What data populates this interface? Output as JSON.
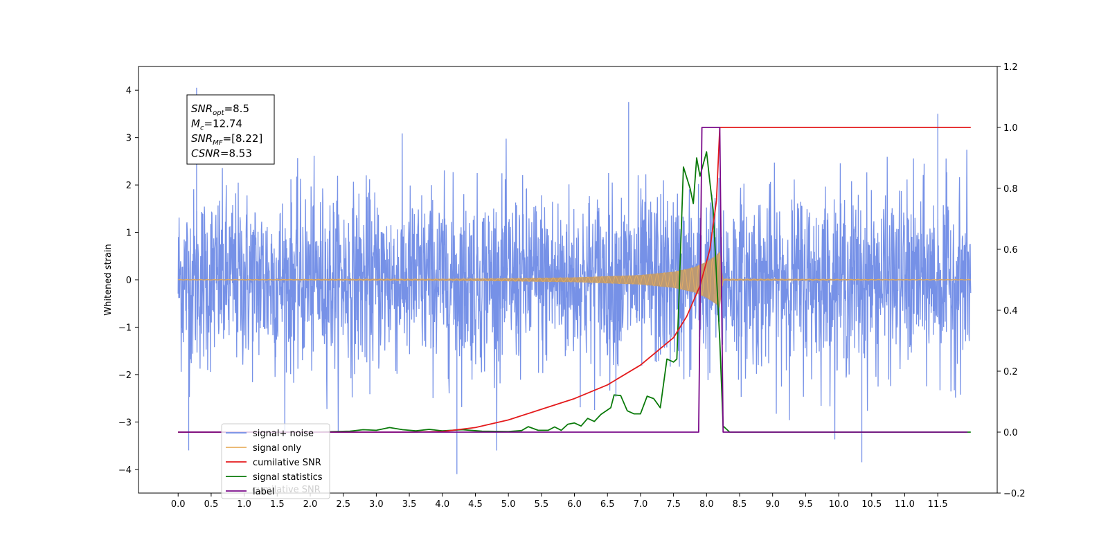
{
  "chart_data": {
    "type": "line",
    "title": "",
    "xlabel": "",
    "ylabel": "Whitened strain",
    "xlim": [
      -0.6,
      12.4
    ],
    "ylim": [
      -4.5,
      4.5
    ],
    "y2lim": [
      -0.2,
      1.2
    ],
    "xticks": [
      0.0,
      0.5,
      1.0,
      1.5,
      2.0,
      2.5,
      3.0,
      3.5,
      4.0,
      4.5,
      5.0,
      5.5,
      6.0,
      6.5,
      7.0,
      7.5,
      8.0,
      8.5,
      9.0,
      9.5,
      10.0,
      10.5,
      11.0,
      11.5
    ],
    "xtick_labels": [
      "0.0",
      "0.5",
      "1.0",
      "1.5",
      "2.0",
      "2.5",
      "3.0",
      "3.5",
      "4.0",
      "4.5",
      "5.0",
      "5.5",
      "6.0",
      "6.5",
      "7.0",
      "7.5",
      "8.0",
      "8.5",
      "9.0",
      "9.5",
      "10.0",
      "10.5",
      "11.0",
      "11.5"
    ],
    "yticks": [
      -4,
      -3,
      -2,
      -1,
      0,
      1,
      2,
      3,
      4
    ],
    "ytick_labels": [
      "−4",
      "−3",
      "−2",
      "−1",
      "0",
      "1",
      "2",
      "3",
      "4"
    ],
    "y2ticks": [
      -0.2,
      0.0,
      0.2,
      0.4,
      0.6,
      0.8,
      1.0,
      1.2
    ],
    "y2tick_labels": [
      "−0.2",
      "0.0",
      "0.2",
      "0.4",
      "0.6",
      "0.8",
      "1.0",
      "1.2"
    ],
    "grid": false,
    "legend_position": "lower-left",
    "annotation": [
      {
        "sym": "SNR",
        "sub": "opt",
        "rest": "=8.5"
      },
      {
        "sym": "M",
        "sub": "c",
        "rest": "=12.74"
      },
      {
        "sym": "SNR",
        "sub": "MF",
        "rest": "=[8.22]"
      },
      {
        "sym": "CSNR",
        "sub": "",
        "rest": "=8.53"
      }
    ],
    "series": [
      {
        "name": "signal+ noise",
        "axis": "left",
        "color": "#6f8be6",
        "x_range": [
          0.0,
          12.0
        ],
        "typical_amplitude": [
          -1.6,
          1.7
        ],
        "extreme_points": [
          [
            0.28,
            4.05
          ],
          [
            0.16,
            -3.6
          ],
          [
            4.22,
            -4.1
          ],
          [
            10.35,
            -3.85
          ],
          [
            6.82,
            3.75
          ],
          [
            11.5,
            3.5
          ]
        ]
      },
      {
        "name": "signal only",
        "axis": "left",
        "color": "#e8b063",
        "envelope": [
          [
            0.0,
            0.01
          ],
          [
            4.0,
            0.02
          ],
          [
            5.0,
            0.03
          ],
          [
            6.0,
            0.05
          ],
          [
            7.0,
            0.1
          ],
          [
            7.5,
            0.17
          ],
          [
            7.8,
            0.26
          ],
          [
            8.0,
            0.38
          ],
          [
            8.15,
            0.52
          ],
          [
            8.2,
            0.6
          ],
          [
            8.25,
            0.02
          ],
          [
            12.0,
            0.01
          ]
        ]
      },
      {
        "name": "cumilative SNR",
        "axis": "right",
        "color": "#e41a1c",
        "points": [
          [
            0.0,
            0.0
          ],
          [
            3.5,
            0.0
          ],
          [
            4.0,
            0.002
          ],
          [
            4.5,
            0.015
          ],
          [
            5.0,
            0.04
          ],
          [
            5.5,
            0.075
          ],
          [
            6.0,
            0.11
          ],
          [
            6.5,
            0.155
          ],
          [
            7.0,
            0.22
          ],
          [
            7.5,
            0.31
          ],
          [
            7.7,
            0.38
          ],
          [
            7.9,
            0.48
          ],
          [
            8.05,
            0.6
          ],
          [
            8.15,
            0.76
          ],
          [
            8.2,
            1.0
          ],
          [
            12.0,
            1.0
          ]
        ]
      },
      {
        "name": "signal statistics",
        "axis": "right",
        "color": "#0a7a0a",
        "points": [
          [
            0.0,
            0.0
          ],
          [
            2.0,
            0.0
          ],
          [
            2.6,
            0.003
          ],
          [
            2.8,
            0.008
          ],
          [
            3.0,
            0.006
          ],
          [
            3.2,
            0.015
          ],
          [
            3.4,
            0.008
          ],
          [
            3.6,
            0.004
          ],
          [
            3.8,
            0.009
          ],
          [
            4.0,
            0.004
          ],
          [
            4.3,
            0.008
          ],
          [
            4.6,
            0.003
          ],
          [
            5.0,
            0.002
          ],
          [
            5.2,
            0.005
          ],
          [
            5.3,
            0.018
          ],
          [
            5.45,
            0.006
          ],
          [
            5.6,
            0.006
          ],
          [
            5.7,
            0.017
          ],
          [
            5.8,
            0.006
          ],
          [
            5.9,
            0.026
          ],
          [
            6.0,
            0.03
          ],
          [
            6.1,
            0.02
          ],
          [
            6.2,
            0.045
          ],
          [
            6.3,
            0.035
          ],
          [
            6.4,
            0.058
          ],
          [
            6.55,
            0.08
          ],
          [
            6.6,
            0.122
          ],
          [
            6.7,
            0.12
          ],
          [
            6.8,
            0.07
          ],
          [
            6.9,
            0.06
          ],
          [
            7.0,
            0.06
          ],
          [
            7.1,
            0.118
          ],
          [
            7.2,
            0.11
          ],
          [
            7.3,
            0.08
          ],
          [
            7.4,
            0.24
          ],
          [
            7.5,
            0.23
          ],
          [
            7.55,
            0.24
          ],
          [
            7.65,
            0.87
          ],
          [
            7.75,
            0.8
          ],
          [
            7.8,
            0.75
          ],
          [
            7.85,
            0.9
          ],
          [
            7.9,
            0.84
          ],
          [
            8.0,
            0.92
          ],
          [
            8.05,
            0.82
          ],
          [
            8.1,
            0.73
          ],
          [
            8.2,
            0.3
          ],
          [
            8.25,
            0.02
          ],
          [
            8.35,
            0.0
          ],
          [
            12.0,
            0.0
          ]
        ]
      },
      {
        "name": "label",
        "axis": "right",
        "color": "#7a0a8a",
        "points": [
          [
            0.0,
            0.0
          ],
          [
            7.88,
            0.0
          ],
          [
            7.93,
            1.0
          ],
          [
            8.2,
            1.0
          ],
          [
            8.25,
            0.0
          ],
          [
            11.95,
            0.0
          ]
        ]
      }
    ]
  },
  "legend": {
    "hidden_text": "cumilative SNR"
  }
}
